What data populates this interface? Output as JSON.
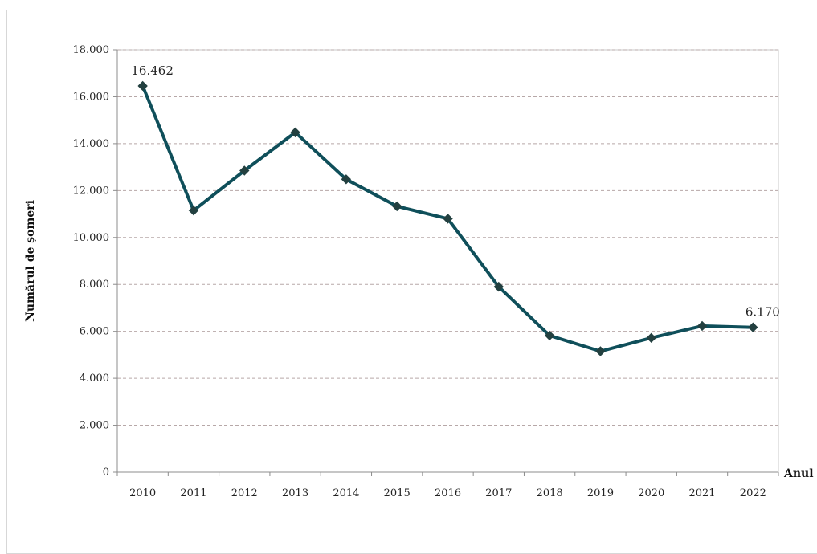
{
  "chart_data": {
    "type": "line",
    "title": "",
    "xlabel": "Anul",
    "ylabel": "Numărul de șomeri",
    "categories": [
      "2010",
      "2011",
      "2012",
      "2013",
      "2014",
      "2015",
      "2016",
      "2017",
      "2018",
      "2019",
      "2020",
      "2021",
      "2022"
    ],
    "series": [
      {
        "name": "",
        "values": [
          16462,
          11150,
          12850,
          14480,
          12480,
          11330,
          10800,
          7900,
          5820,
          5150,
          5720,
          6230,
          6170
        ]
      }
    ],
    "ylim": [
      0,
      18000
    ],
    "yticks": [
      0,
      2000,
      4000,
      6000,
      8000,
      10000,
      12000,
      14000,
      16000,
      18000
    ],
    "ytick_labels": [
      "0",
      "2.000",
      "4.000",
      "6.000",
      "8.000",
      "10.000",
      "12.000",
      "14.000",
      "16.000",
      "18.000"
    ],
    "data_labels": [
      {
        "index": 0,
        "text": "16.462"
      },
      {
        "index": 12,
        "text": "6.170"
      }
    ],
    "grid": true,
    "legend": "none",
    "colors": {
      "line": "#0f4f5a",
      "marker": "#234040",
      "grid": "#b7a8a8",
      "axis": "#8c8c8c"
    }
  }
}
